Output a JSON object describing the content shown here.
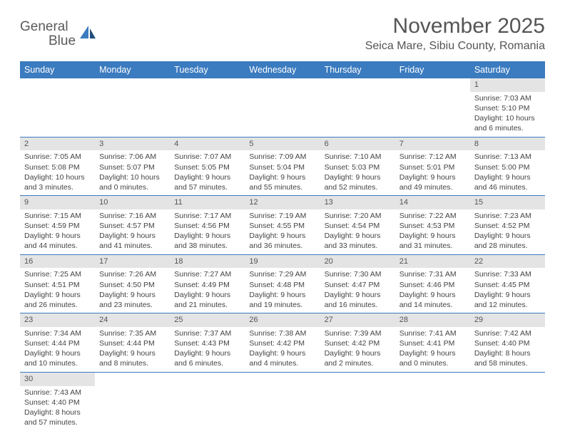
{
  "logo": {
    "word1": "General",
    "word2": "Blue"
  },
  "title": "November 2025",
  "location": "Seica Mare, Sibiu County, Romania",
  "colors": {
    "accent": "#3b7bbf",
    "headerText": "#ffffff",
    "dayBg": "#e4e4e4"
  },
  "weekdays": [
    "Sunday",
    "Monday",
    "Tuesday",
    "Wednesday",
    "Thursday",
    "Friday",
    "Saturday"
  ],
  "weeks": [
    [
      null,
      null,
      null,
      null,
      null,
      null,
      {
        "n": "1",
        "sr": "Sunrise: 7:03 AM",
        "ss": "Sunset: 5:10 PM",
        "d1": "Daylight: 10 hours",
        "d2": "and 6 minutes."
      }
    ],
    [
      {
        "n": "2",
        "sr": "Sunrise: 7:05 AM",
        "ss": "Sunset: 5:08 PM",
        "d1": "Daylight: 10 hours",
        "d2": "and 3 minutes."
      },
      {
        "n": "3",
        "sr": "Sunrise: 7:06 AM",
        "ss": "Sunset: 5:07 PM",
        "d1": "Daylight: 10 hours",
        "d2": "and 0 minutes."
      },
      {
        "n": "4",
        "sr": "Sunrise: 7:07 AM",
        "ss": "Sunset: 5:05 PM",
        "d1": "Daylight: 9 hours",
        "d2": "and 57 minutes."
      },
      {
        "n": "5",
        "sr": "Sunrise: 7:09 AM",
        "ss": "Sunset: 5:04 PM",
        "d1": "Daylight: 9 hours",
        "d2": "and 55 minutes."
      },
      {
        "n": "6",
        "sr": "Sunrise: 7:10 AM",
        "ss": "Sunset: 5:03 PM",
        "d1": "Daylight: 9 hours",
        "d2": "and 52 minutes."
      },
      {
        "n": "7",
        "sr": "Sunrise: 7:12 AM",
        "ss": "Sunset: 5:01 PM",
        "d1": "Daylight: 9 hours",
        "d2": "and 49 minutes."
      },
      {
        "n": "8",
        "sr": "Sunrise: 7:13 AM",
        "ss": "Sunset: 5:00 PM",
        "d1": "Daylight: 9 hours",
        "d2": "and 46 minutes."
      }
    ],
    [
      {
        "n": "9",
        "sr": "Sunrise: 7:15 AM",
        "ss": "Sunset: 4:59 PM",
        "d1": "Daylight: 9 hours",
        "d2": "and 44 minutes."
      },
      {
        "n": "10",
        "sr": "Sunrise: 7:16 AM",
        "ss": "Sunset: 4:57 PM",
        "d1": "Daylight: 9 hours",
        "d2": "and 41 minutes."
      },
      {
        "n": "11",
        "sr": "Sunrise: 7:17 AM",
        "ss": "Sunset: 4:56 PM",
        "d1": "Daylight: 9 hours",
        "d2": "and 38 minutes."
      },
      {
        "n": "12",
        "sr": "Sunrise: 7:19 AM",
        "ss": "Sunset: 4:55 PM",
        "d1": "Daylight: 9 hours",
        "d2": "and 36 minutes."
      },
      {
        "n": "13",
        "sr": "Sunrise: 7:20 AM",
        "ss": "Sunset: 4:54 PM",
        "d1": "Daylight: 9 hours",
        "d2": "and 33 minutes."
      },
      {
        "n": "14",
        "sr": "Sunrise: 7:22 AM",
        "ss": "Sunset: 4:53 PM",
        "d1": "Daylight: 9 hours",
        "d2": "and 31 minutes."
      },
      {
        "n": "15",
        "sr": "Sunrise: 7:23 AM",
        "ss": "Sunset: 4:52 PM",
        "d1": "Daylight: 9 hours",
        "d2": "and 28 minutes."
      }
    ],
    [
      {
        "n": "16",
        "sr": "Sunrise: 7:25 AM",
        "ss": "Sunset: 4:51 PM",
        "d1": "Daylight: 9 hours",
        "d2": "and 26 minutes."
      },
      {
        "n": "17",
        "sr": "Sunrise: 7:26 AM",
        "ss": "Sunset: 4:50 PM",
        "d1": "Daylight: 9 hours",
        "d2": "and 23 minutes."
      },
      {
        "n": "18",
        "sr": "Sunrise: 7:27 AM",
        "ss": "Sunset: 4:49 PM",
        "d1": "Daylight: 9 hours",
        "d2": "and 21 minutes."
      },
      {
        "n": "19",
        "sr": "Sunrise: 7:29 AM",
        "ss": "Sunset: 4:48 PM",
        "d1": "Daylight: 9 hours",
        "d2": "and 19 minutes."
      },
      {
        "n": "20",
        "sr": "Sunrise: 7:30 AM",
        "ss": "Sunset: 4:47 PM",
        "d1": "Daylight: 9 hours",
        "d2": "and 16 minutes."
      },
      {
        "n": "21",
        "sr": "Sunrise: 7:31 AM",
        "ss": "Sunset: 4:46 PM",
        "d1": "Daylight: 9 hours",
        "d2": "and 14 minutes."
      },
      {
        "n": "22",
        "sr": "Sunrise: 7:33 AM",
        "ss": "Sunset: 4:45 PM",
        "d1": "Daylight: 9 hours",
        "d2": "and 12 minutes."
      }
    ],
    [
      {
        "n": "23",
        "sr": "Sunrise: 7:34 AM",
        "ss": "Sunset: 4:44 PM",
        "d1": "Daylight: 9 hours",
        "d2": "and 10 minutes."
      },
      {
        "n": "24",
        "sr": "Sunrise: 7:35 AM",
        "ss": "Sunset: 4:44 PM",
        "d1": "Daylight: 9 hours",
        "d2": "and 8 minutes."
      },
      {
        "n": "25",
        "sr": "Sunrise: 7:37 AM",
        "ss": "Sunset: 4:43 PM",
        "d1": "Daylight: 9 hours",
        "d2": "and 6 minutes."
      },
      {
        "n": "26",
        "sr": "Sunrise: 7:38 AM",
        "ss": "Sunset: 4:42 PM",
        "d1": "Daylight: 9 hours",
        "d2": "and 4 minutes."
      },
      {
        "n": "27",
        "sr": "Sunrise: 7:39 AM",
        "ss": "Sunset: 4:42 PM",
        "d1": "Daylight: 9 hours",
        "d2": "and 2 minutes."
      },
      {
        "n": "28",
        "sr": "Sunrise: 7:41 AM",
        "ss": "Sunset: 4:41 PM",
        "d1": "Daylight: 9 hours",
        "d2": "and 0 minutes."
      },
      {
        "n": "29",
        "sr": "Sunrise: 7:42 AM",
        "ss": "Sunset: 4:40 PM",
        "d1": "Daylight: 8 hours",
        "d2": "and 58 minutes."
      }
    ],
    [
      {
        "n": "30",
        "sr": "Sunrise: 7:43 AM",
        "ss": "Sunset: 4:40 PM",
        "d1": "Daylight: 8 hours",
        "d2": "and 57 minutes."
      },
      null,
      null,
      null,
      null,
      null,
      null
    ]
  ]
}
